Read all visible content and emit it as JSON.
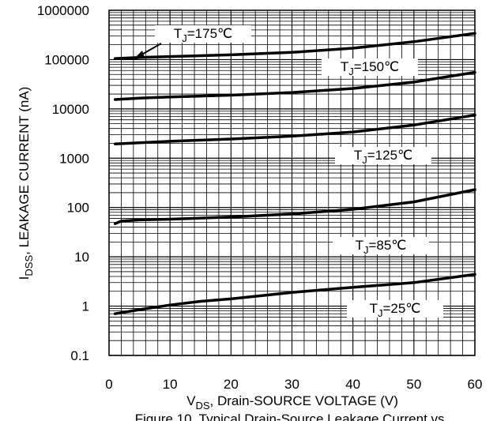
{
  "chart_data": {
    "type": "line",
    "xlabel": {
      "main": "V",
      "sub": "DS",
      "rest": ", Drain-SOURCE VOLTAGE (V)"
    },
    "ylabel": {
      "main": "I",
      "sub": "DSS",
      "rest": ", LEAKAGE CURRENT (nA)"
    },
    "caption": "Figure 10. Typical Drain-Source Leakage Current vs.",
    "x_ticks": [
      "0",
      "10",
      "20",
      "30",
      "40",
      "50",
      "60"
    ],
    "y_ticks": [
      "0.1",
      "1",
      "10",
      "100",
      "1000",
      "10000",
      "100000",
      "1000000"
    ],
    "xlim": [
      0,
      60
    ],
    "ylim": [
      0.1,
      1000000
    ],
    "y_scale": "log",
    "grid": true,
    "series": [
      {
        "label": {
          "main": "T",
          "sub": "J",
          "rest": "=175℃"
        },
        "x": [
          1,
          5,
          10,
          20,
          30,
          40,
          50,
          60
        ],
        "y": [
          105000,
          110000,
          115000,
          125000,
          140000,
          170000,
          230000,
          340000
        ]
      },
      {
        "label": {
          "main": "T",
          "sub": "J",
          "rest": "=150℃"
        },
        "x": [
          1,
          5,
          10,
          20,
          30,
          40,
          50,
          60
        ],
        "y": [
          15500,
          16500,
          17500,
          19000,
          21500,
          26000,
          35000,
          55000
        ]
      },
      {
        "label": {
          "main": "T",
          "sub": "J",
          "rest": "=125℃"
        },
        "x": [
          1,
          5,
          10,
          20,
          30,
          40,
          50,
          60
        ],
        "y": [
          1950,
          2050,
          2200,
          2450,
          2800,
          3400,
          4700,
          7500
        ]
      },
      {
        "label": {
          "main": "T",
          "sub": "J",
          "rest": "=85℃"
        },
        "x": [
          1,
          2,
          5,
          10,
          20,
          30,
          40,
          50,
          60
        ],
        "y": [
          47,
          53,
          56,
          58,
          64,
          74,
          92,
          130,
          230
        ]
      },
      {
        "label": {
          "main": "T",
          "sub": "J",
          "rest": "=25℃"
        },
        "x": [
          1,
          5,
          10,
          15,
          20,
          30,
          40,
          50,
          60
        ],
        "y": [
          0.7,
          0.85,
          1.05,
          1.25,
          1.4,
          1.9,
          2.4,
          3.0,
          4.4
        ]
      }
    ]
  }
}
